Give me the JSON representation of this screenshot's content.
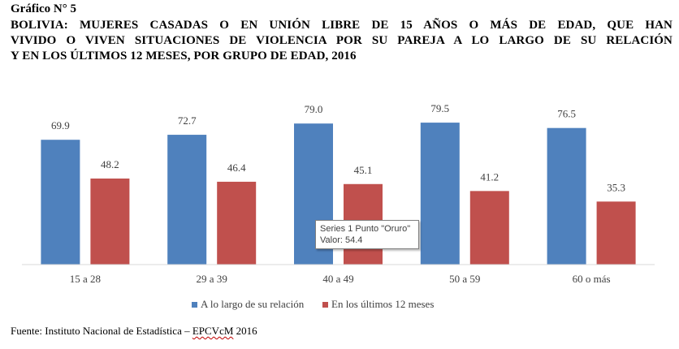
{
  "figure": {
    "label": "Gráfico N° 5",
    "title_lines": [
      "BOLIVIA: MUJERES CASADAS O EN UNIÓN LIBRE DE 15 AÑOS O MÁS DE EDAD, QUE HAN",
      "VIVIDO O VIVEN SITUACIONES DE VIOLENCIA POR SU PAREJA A LO LARGO DE SU RELACIÓN",
      "Y EN LOS ÚLTIMOS 12 MESES, POR GRUPO DE EDAD, 2016"
    ],
    "source_prefix": "Fuente: Instituto Nacional de Estadística – ",
    "source_squiggle": "EPCVcM",
    "source_suffix": " 2016"
  },
  "tooltip": {
    "line1": "Series 1 Punto \"Oruro\"",
    "line2": "Valor: 54.4"
  },
  "chart_data": {
    "type": "bar",
    "categories": [
      "15 a 28",
      "29 a 39",
      "40 a 49",
      "50 a 59",
      "60 o más"
    ],
    "series": [
      {
        "name": "A lo largo de su relación",
        "values": [
          69.9,
          72.7,
          79.0,
          79.5,
          76.5
        ],
        "color": "#4f81bd"
      },
      {
        "name": "En los últimos 12 meses",
        "values": [
          48.2,
          46.4,
          45.1,
          41.2,
          35.3
        ],
        "color": "#c0504d"
      }
    ],
    "title": "BOLIVIA: MUJERES CASADAS O EN UNIÓN LIBRE DE 15 AÑOS O MÁS DE EDAD, QUE HAN VIVIDO O VIVEN SITUACIONES DE VIOLENCIA POR SU PAREJA A LO LARGO DE SU RELACIÓN Y EN LOS ÚLTIMOS 12 MESES, POR GRUPO DE EDAD, 2016",
    "xlabel": "",
    "ylabel": "",
    "ylim": [
      0,
      100
    ],
    "grid": false,
    "legend_position": "bottom",
    "data_labels": true
  }
}
